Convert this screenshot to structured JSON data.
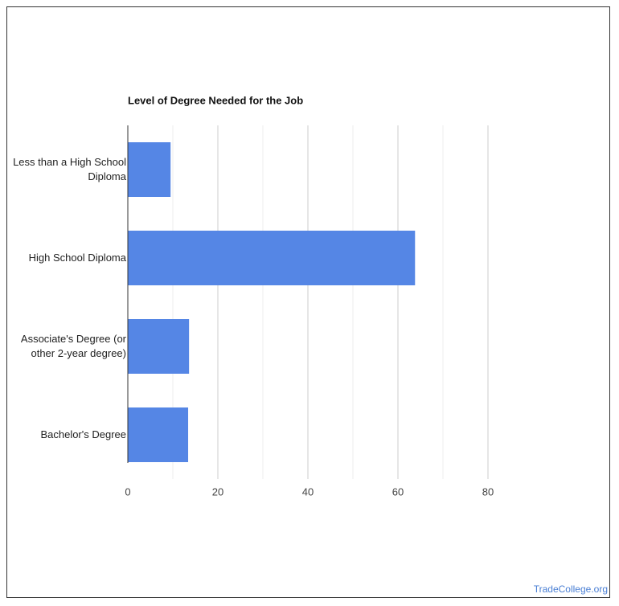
{
  "chart_data": {
    "type": "bar",
    "orientation": "horizontal",
    "title": "Level of Degree Needed for the Job",
    "categories": [
      "Less than a High School Diploma",
      "High School Diploma",
      "Associate's Degree (or other 2-year degree)",
      "Bachelor's Degree"
    ],
    "values": [
      9.5,
      63.8,
      13.6,
      13.4
    ],
    "color": "#5586e5",
    "xlim": [
      0,
      80
    ],
    "xticks": [
      0,
      20,
      40,
      60,
      80
    ],
    "xminorticks": [
      10,
      30,
      50,
      70
    ],
    "grid": true
  },
  "footer": {
    "source": "TradeCollege.org"
  }
}
